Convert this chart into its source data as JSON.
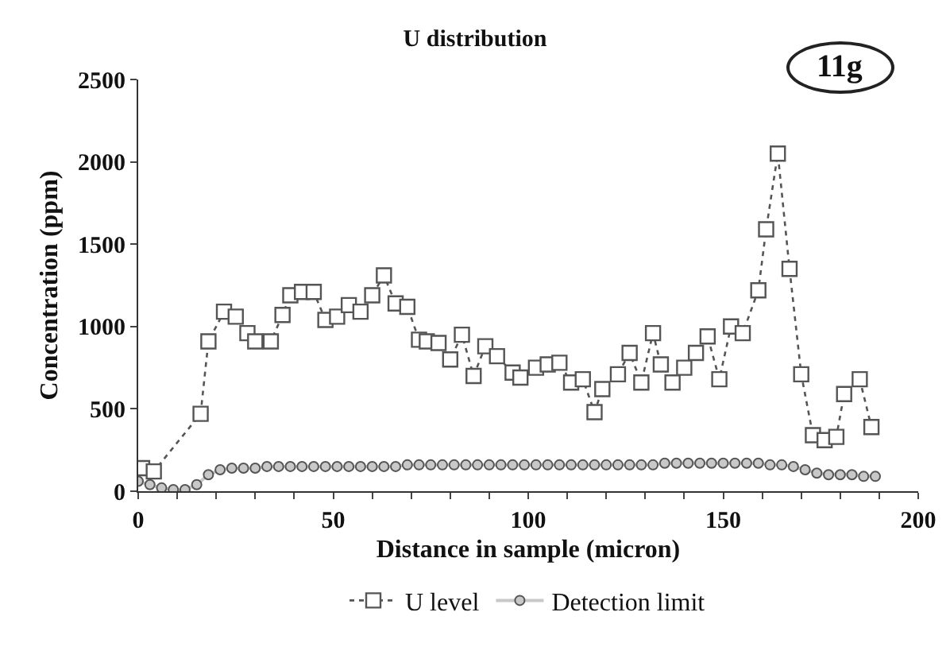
{
  "chart_data": {
    "type": "line",
    "title": "U distribution",
    "xlabel": "Distance in sample (micron)",
    "ylabel": "Concentration (ppm)",
    "annotations": [
      "11g"
    ],
    "xlim": [
      0,
      200
    ],
    "xticks": [
      0,
      {
        "value": 10,
        "label": null
      },
      {
        "value": 20,
        "label": null
      },
      {
        "value": 30,
        "label": null
      },
      {
        "value": 40,
        "label": null
      },
      50,
      {
        "value": 60,
        "label": null
      },
      {
        "value": 70,
        "label": null
      },
      {
        "value": 80,
        "label": null
      },
      {
        "value": 90,
        "label": null
      },
      100,
      {
        "value": 110,
        "label": null
      },
      {
        "value": 120,
        "label": null
      },
      {
        "value": 130,
        "label": null
      },
      {
        "value": 140,
        "label": null
      },
      150,
      {
        "value": 160,
        "label": null
      },
      {
        "value": 170,
        "label": null
      },
      {
        "value": 180,
        "label": null
      },
      {
        "value": 190,
        "label": null
      },
      200
    ],
    "ylim": [
      0,
      2500
    ],
    "yticks": [
      0,
      500,
      1000,
      1500,
      2000,
      2500
    ],
    "grid": false,
    "legend": "bottom",
    "series": [
      {
        "name": "U level",
        "color": "#555555",
        "marker": "square",
        "line_style": "dotted",
        "x": [
          1,
          4,
          16,
          18,
          22,
          25,
          28,
          30,
          34,
          37,
          39,
          42,
          45,
          48,
          51,
          54,
          57,
          60,
          63,
          66,
          69,
          72,
          74,
          77,
          80,
          83,
          86,
          89,
          92,
          96,
          98,
          102,
          105,
          108,
          111,
          114,
          117,
          119,
          123,
          126,
          129,
          132,
          134,
          137,
          140,
          143,
          146,
          149,
          152,
          155,
          159,
          161,
          164,
          167,
          170,
          173,
          176,
          179,
          181,
          185,
          188
        ],
        "values": [
          140,
          120,
          470,
          910,
          1090,
          1060,
          960,
          910,
          910,
          1070,
          1190,
          1210,
          1210,
          1040,
          1060,
          1130,
          1090,
          1190,
          1310,
          1140,
          1120,
          920,
          910,
          900,
          800,
          950,
          700,
          880,
          820,
          720,
          690,
          750,
          770,
          780,
          660,
          680,
          480,
          620,
          710,
          840,
          660,
          960,
          770,
          660,
          750,
          840,
          940,
          680,
          1000,
          960,
          1220,
          1590,
          2050,
          1350,
          710,
          340,
          310,
          330,
          590,
          680,
          390
        ]
      },
      {
        "name": "Detection limit",
        "color": "#c8c8c8",
        "marker": "circle",
        "line_style": "solid",
        "x": [
          0,
          3,
          6,
          9,
          12,
          15,
          18,
          21,
          24,
          27,
          30,
          33,
          36,
          39,
          42,
          45,
          48,
          51,
          54,
          57,
          60,
          63,
          66,
          69,
          72,
          75,
          78,
          81,
          84,
          87,
          90,
          93,
          96,
          99,
          102,
          105,
          108,
          111,
          114,
          117,
          120,
          123,
          126,
          129,
          132,
          135,
          138,
          141,
          144,
          147,
          150,
          153,
          156,
          159,
          162,
          165,
          168,
          171,
          174,
          177,
          180,
          183,
          186,
          189
        ],
        "values": [
          60,
          40,
          20,
          10,
          10,
          40,
          100,
          130,
          140,
          140,
          140,
          150,
          150,
          150,
          150,
          150,
          150,
          150,
          150,
          150,
          150,
          150,
          150,
          160,
          160,
          160,
          160,
          160,
          160,
          160,
          160,
          160,
          160,
          160,
          160,
          160,
          160,
          160,
          160,
          160,
          160,
          160,
          160,
          160,
          160,
          170,
          170,
          170,
          170,
          170,
          170,
          170,
          170,
          170,
          160,
          160,
          150,
          130,
          110,
          100,
          100,
          100,
          90,
          90
        ]
      }
    ]
  }
}
